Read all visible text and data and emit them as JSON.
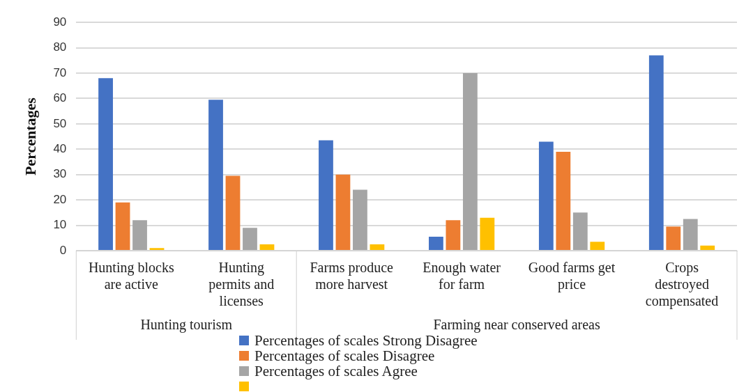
{
  "chart_data": {
    "type": "bar",
    "ylabel": "Percentages",
    "categories": [
      "Hunting blocks are active",
      "Hunting permits and licenses",
      "Farms produce more harvest",
      "Enough water for farm",
      "Good farms get price",
      "Crops destroyed compensated"
    ],
    "series": [
      {
        "name": "Percentages of scales Strong Disagree",
        "color": "#4472c4",
        "values": [
          68,
          59.5,
          43.5,
          5.5,
          43,
          77
        ]
      },
      {
        "name": "Percentages of scales Disagree",
        "color": "#ed7d31",
        "values": [
          19,
          29.5,
          30,
          12,
          39,
          9.5
        ]
      },
      {
        "name": "Percentages of scales Agree",
        "color": "#a5a5a5",
        "values": [
          12,
          9,
          24,
          70,
          15,
          12.5
        ]
      },
      {
        "color": "#ffc000",
        "values": [
          1,
          2.5,
          2.5,
          13,
          3.5,
          2
        ]
      }
    ],
    "ylim": [
      0,
      90
    ],
    "yticks": [
      0,
      10,
      20,
      30,
      40,
      50,
      60,
      70,
      80,
      90
    ],
    "grid": "y",
    "legend": "bottom",
    "annotations": [
      "Hunting tourism",
      "Farming near conserved areas"
    ]
  }
}
